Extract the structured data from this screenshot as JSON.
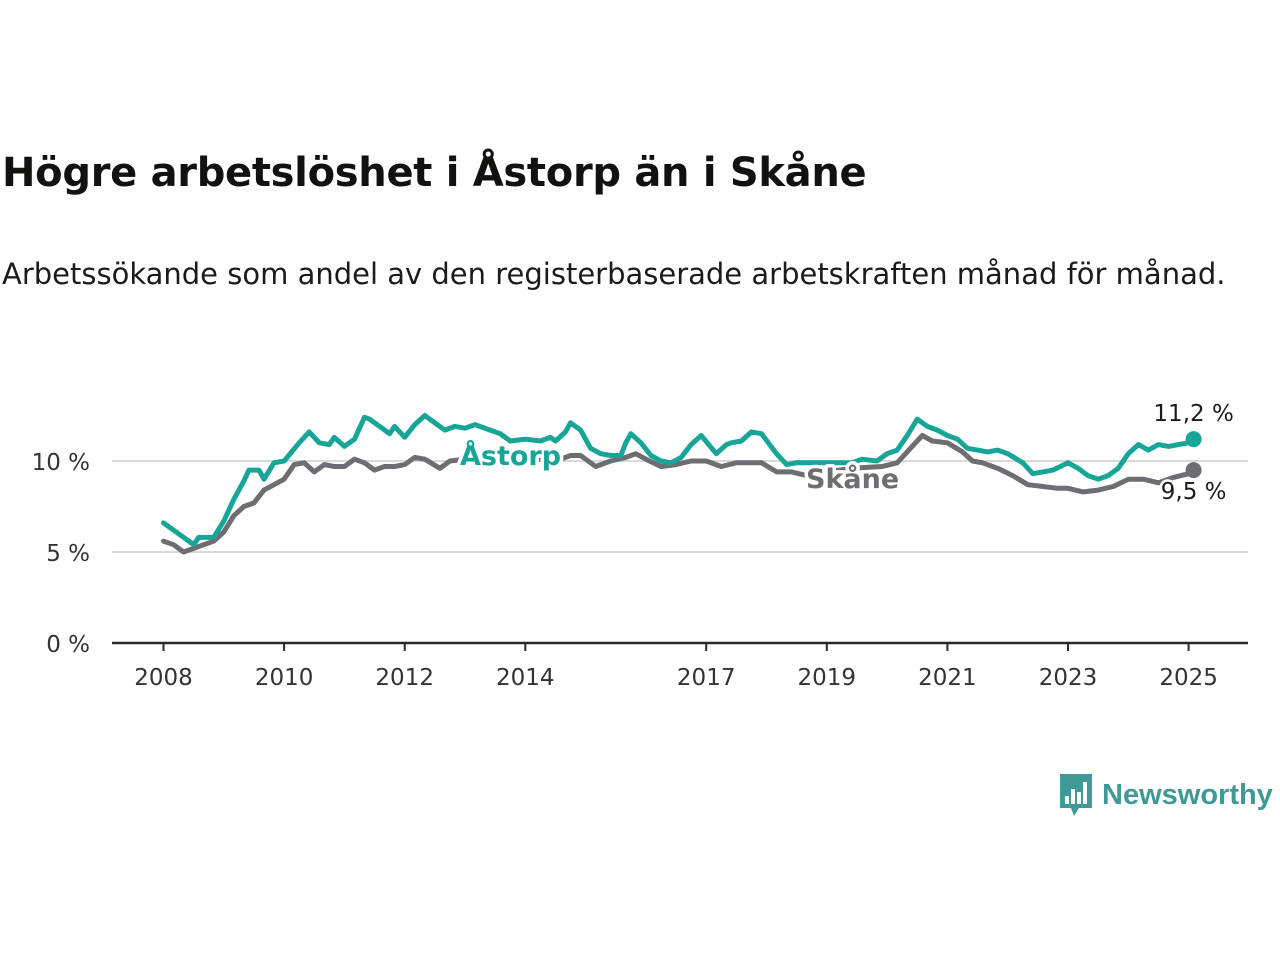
{
  "colors": {
    "astorp": "#16a597",
    "skane": "#6e6d72",
    "grid": "#d9d9d9",
    "axis": "#2a2a2a",
    "brand": "#3f9994"
  },
  "brand": {
    "name": "Newsworthy",
    "icon": "newsworthy-logo-icon"
  },
  "chart_data": {
    "type": "line",
    "title": "Högre arbetslöshet i Åstorp än i Skåne",
    "subtitle": "Arbetssökande som andel av den registerbaserade arbetskraften månad för månad.",
    "xlabel": "",
    "ylabel": "",
    "ylim": [
      0,
      13
    ],
    "xlim": [
      "2008-01",
      "2025-07"
    ],
    "y_ticks": [
      {
        "value": 0,
        "label": "0 %"
      },
      {
        "value": 5,
        "label": "5 %"
      },
      {
        "value": 10,
        "label": "10 %"
      }
    ],
    "x_ticks": [
      {
        "value": "2008-01",
        "label": "2008"
      },
      {
        "value": "2010-01",
        "label": "2010"
      },
      {
        "value": "2012-01",
        "label": "2012"
      },
      {
        "value": "2014-01",
        "label": "2014"
      },
      {
        "value": "2017-01",
        "label": "2017"
      },
      {
        "value": "2019-01",
        "label": "2019"
      },
      {
        "value": "2021-01",
        "label": "2021"
      },
      {
        "value": "2023-01",
        "label": "2023"
      },
      {
        "value": "2025-01",
        "label": "2025"
      }
    ],
    "grid": "horizontal",
    "series": [
      {
        "name": "Åstorp",
        "end_label": "11,2 %",
        "points": [
          [
            "2008-01",
            6.6
          ],
          [
            "2008-05",
            5.8
          ],
          [
            "2008-07",
            5.4
          ],
          [
            "2008-08",
            5.8
          ],
          [
            "2008-11",
            5.8
          ],
          [
            "2009-01",
            6.7
          ],
          [
            "2009-03",
            7.9
          ],
          [
            "2009-05",
            8.9
          ],
          [
            "2009-06",
            9.5
          ],
          [
            "2009-08",
            9.5
          ],
          [
            "2009-09",
            9.0
          ],
          [
            "2009-11",
            9.9
          ],
          [
            "2010-01",
            10.0
          ],
          [
            "2010-04",
            11.0
          ],
          [
            "2010-06",
            11.6
          ],
          [
            "2010-08",
            11.0
          ],
          [
            "2010-10",
            10.9
          ],
          [
            "2010-11",
            11.3
          ],
          [
            "2011-01",
            10.8
          ],
          [
            "2011-03",
            11.2
          ],
          [
            "2011-05",
            12.4
          ],
          [
            "2011-06",
            12.3
          ],
          [
            "2011-08",
            11.9
          ],
          [
            "2011-10",
            11.5
          ],
          [
            "2011-11",
            11.9
          ],
          [
            "2012-01",
            11.3
          ],
          [
            "2012-03",
            12.0
          ],
          [
            "2012-05",
            12.5
          ],
          [
            "2012-07",
            12.1
          ],
          [
            "2012-09",
            11.7
          ],
          [
            "2012-11",
            11.9
          ],
          [
            "2013-01",
            11.8
          ],
          [
            "2013-03",
            12.0
          ],
          [
            "2013-06",
            11.7
          ],
          [
            "2013-08",
            11.5
          ],
          [
            "2013-10",
            11.1
          ],
          [
            "2014-01",
            11.2
          ],
          [
            "2014-04",
            11.1
          ],
          [
            "2014-06",
            11.3
          ],
          [
            "2014-07",
            11.1
          ],
          [
            "2014-09",
            11.6
          ],
          [
            "2014-10",
            12.1
          ],
          [
            "2014-12",
            11.7
          ],
          [
            "2015-02",
            10.7
          ],
          [
            "2015-04",
            10.4
          ],
          [
            "2015-06",
            10.3
          ],
          [
            "2015-08",
            10.3
          ],
          [
            "2015-09",
            11.0
          ],
          [
            "2015-10",
            11.5
          ],
          [
            "2015-12",
            11.0
          ],
          [
            "2016-02",
            10.3
          ],
          [
            "2016-04",
            10.0
          ],
          [
            "2016-06",
            9.9
          ],
          [
            "2016-08",
            10.2
          ],
          [
            "2016-10",
            10.9
          ],
          [
            "2016-12",
            11.4
          ],
          [
            "2017-03",
            10.4
          ],
          [
            "2017-05",
            10.9
          ],
          [
            "2017-06",
            11.0
          ],
          [
            "2017-08",
            11.1
          ],
          [
            "2017-10",
            11.6
          ],
          [
            "2017-12",
            11.5
          ],
          [
            "2018-03",
            10.4
          ],
          [
            "2018-05",
            9.8
          ],
          [
            "2018-07",
            9.9
          ],
          [
            "2019-01",
            9.9
          ],
          [
            "2019-06",
            9.9
          ],
          [
            "2019-08",
            10.1
          ],
          [
            "2019-11",
            10.0
          ],
          [
            "2020-01",
            10.4
          ],
          [
            "2020-03",
            10.6
          ],
          [
            "2020-05",
            11.4
          ],
          [
            "2020-07",
            12.3
          ],
          [
            "2020-09",
            11.9
          ],
          [
            "2020-11",
            11.7
          ],
          [
            "2021-01",
            11.4
          ],
          [
            "2021-03",
            11.2
          ],
          [
            "2021-05",
            10.7
          ],
          [
            "2021-07",
            10.6
          ],
          [
            "2021-09",
            10.5
          ],
          [
            "2021-11",
            10.6
          ],
          [
            "2022-01",
            10.4
          ],
          [
            "2022-04",
            9.9
          ],
          [
            "2022-06",
            9.3
          ],
          [
            "2022-08",
            9.4
          ],
          [
            "2022-10",
            9.5
          ],
          [
            "2023-01",
            9.9
          ],
          [
            "2023-03",
            9.6
          ],
          [
            "2023-05",
            9.2
          ],
          [
            "2023-07",
            9.0
          ],
          [
            "2023-09",
            9.2
          ],
          [
            "2023-11",
            9.6
          ],
          [
            "2024-01",
            10.4
          ],
          [
            "2024-03",
            10.9
          ],
          [
            "2024-05",
            10.6
          ],
          [
            "2024-07",
            10.9
          ],
          [
            "2024-09",
            10.8
          ],
          [
            "2024-11",
            10.9
          ],
          [
            "2025-01",
            11.0
          ],
          [
            "2025-02",
            11.2
          ]
        ]
      },
      {
        "name": "Skåne",
        "end_label": "9,5 %",
        "points": [
          [
            "2008-01",
            5.6
          ],
          [
            "2008-03",
            5.4
          ],
          [
            "2008-05",
            5.0
          ],
          [
            "2008-07",
            5.2
          ],
          [
            "2008-09",
            5.4
          ],
          [
            "2008-11",
            5.6
          ],
          [
            "2009-01",
            6.1
          ],
          [
            "2009-03",
            7.0
          ],
          [
            "2009-05",
            7.5
          ],
          [
            "2009-07",
            7.7
          ],
          [
            "2009-09",
            8.4
          ],
          [
            "2009-11",
            8.7
          ],
          [
            "2010-01",
            9.0
          ],
          [
            "2010-03",
            9.8
          ],
          [
            "2010-05",
            9.9
          ],
          [
            "2010-07",
            9.4
          ],
          [
            "2010-09",
            9.8
          ],
          [
            "2010-11",
            9.7
          ],
          [
            "2011-01",
            9.7
          ],
          [
            "2011-03",
            10.1
          ],
          [
            "2011-05",
            9.9
          ],
          [
            "2011-07",
            9.5
          ],
          [
            "2011-09",
            9.7
          ],
          [
            "2011-11",
            9.7
          ],
          [
            "2012-01",
            9.8
          ],
          [
            "2012-03",
            10.2
          ],
          [
            "2012-05",
            10.1
          ],
          [
            "2012-08",
            9.6
          ],
          [
            "2012-10",
            10.0
          ],
          [
            "2013-01",
            10.1
          ],
          [
            "2013-04",
            10.3
          ],
          [
            "2013-07",
            10.2
          ],
          [
            "2013-10",
            10.2
          ],
          [
            "2014-01",
            10.1
          ],
          [
            "2014-04",
            10.1
          ],
          [
            "2014-07",
            10.0
          ],
          [
            "2014-10",
            10.3
          ],
          [
            "2014-12",
            10.3
          ],
          [
            "2015-03",
            9.7
          ],
          [
            "2015-06",
            10.0
          ],
          [
            "2015-09",
            10.2
          ],
          [
            "2015-11",
            10.4
          ],
          [
            "2016-01",
            10.1
          ],
          [
            "2016-04",
            9.7
          ],
          [
            "2016-07",
            9.8
          ],
          [
            "2016-10",
            10.0
          ],
          [
            "2017-01",
            10.0
          ],
          [
            "2017-04",
            9.7
          ],
          [
            "2017-07",
            9.9
          ],
          [
            "2017-10",
            9.9
          ],
          [
            "2017-12",
            9.9
          ],
          [
            "2018-03",
            9.4
          ],
          [
            "2018-06",
            9.4
          ],
          [
            "2018-09",
            9.2
          ],
          [
            "2019-01",
            9.4
          ],
          [
            "2019-06",
            9.6
          ],
          [
            "2019-12",
            9.7
          ],
          [
            "2020-03",
            9.9
          ],
          [
            "2020-06",
            10.8
          ],
          [
            "2020-08",
            11.4
          ],
          [
            "2020-10",
            11.1
          ],
          [
            "2021-01",
            11.0
          ],
          [
            "2021-04",
            10.5
          ],
          [
            "2021-06",
            10.0
          ],
          [
            "2021-08",
            9.9
          ],
          [
            "2021-11",
            9.6
          ],
          [
            "2022-02",
            9.2
          ],
          [
            "2022-05",
            8.7
          ],
          [
            "2022-08",
            8.6
          ],
          [
            "2022-11",
            8.5
          ],
          [
            "2023-01",
            8.5
          ],
          [
            "2023-04",
            8.3
          ],
          [
            "2023-07",
            8.4
          ],
          [
            "2023-10",
            8.6
          ],
          [
            "2024-01",
            9.0
          ],
          [
            "2024-04",
            9.0
          ],
          [
            "2024-07",
            8.8
          ],
          [
            "2024-10",
            9.1
          ],
          [
            "2025-01",
            9.3
          ],
          [
            "2025-02",
            9.5
          ]
        ]
      }
    ]
  }
}
